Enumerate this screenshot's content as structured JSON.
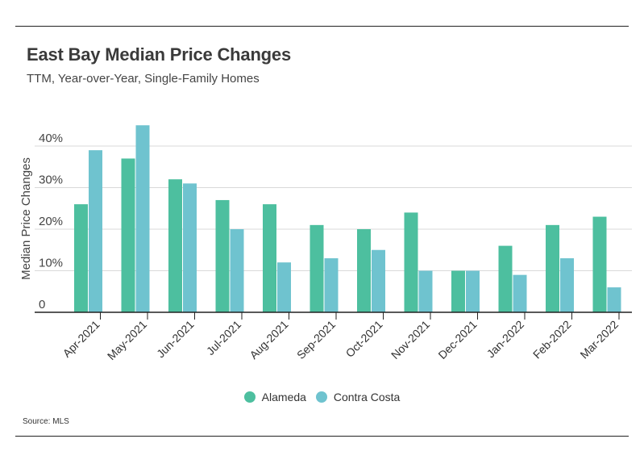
{
  "header": {
    "title": "East Bay Median Price Changes",
    "subtitle": "TTM, Year-over-Year, Single-Family Homes"
  },
  "footer": {
    "source": "Source:  MLS"
  },
  "colors": {
    "alameda": "#4dbf9f",
    "contra_costa": "#6fc3cf",
    "grid": "#d9d9d9",
    "axis": "#222222"
  },
  "chart_data": {
    "type": "bar",
    "title": "East Bay Median Price Changes",
    "subtitle": "TTM, Year-over-Year, Single-Family Homes",
    "xlabel": "",
    "ylabel": "Median Price Changes",
    "ylim": [
      0,
      45
    ],
    "yticks": [
      0,
      10,
      20,
      30,
      40
    ],
    "ytick_labels": [
      "0",
      "10%",
      "20%",
      "30%",
      "40%"
    ],
    "grid": true,
    "legend": "bottom",
    "categories": [
      "Apr-2021",
      "May-2021",
      "Jun-2021",
      "Jul-2021",
      "Aug-2021",
      "Sep-2021",
      "Oct-2021",
      "Nov-2021",
      "Dec-2021",
      "Jan-2022",
      "Feb-2022",
      "Mar-2022"
    ],
    "series": [
      {
        "name": "Alameda",
        "color": "#4dbf9f",
        "values": [
          26,
          37,
          32,
          27,
          26,
          21,
          20,
          24,
          10,
          16,
          21,
          23
        ]
      },
      {
        "name": "Contra Costa",
        "color": "#6fc3cf",
        "values": [
          39,
          45,
          31,
          20,
          12,
          13,
          15,
          10,
          10,
          9,
          13,
          6
        ]
      }
    ]
  }
}
